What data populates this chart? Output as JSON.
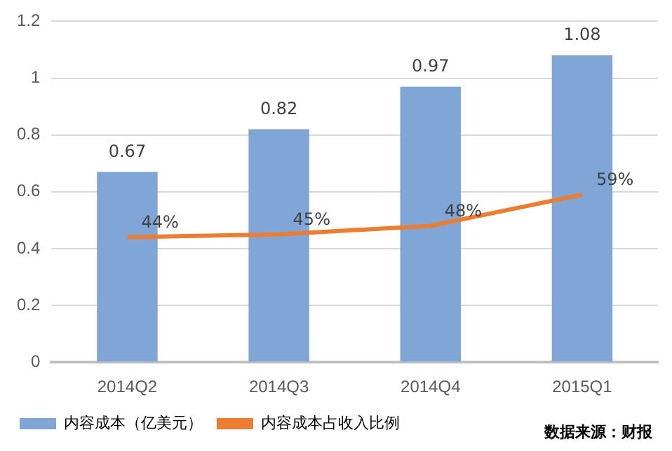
{
  "chart_data": {
    "type": "bar",
    "categories": [
      "2014Q2",
      "2014Q3",
      "2014Q4",
      "2015Q1"
    ],
    "series": [
      {
        "name": "内容成本（亿美元）",
        "color": "#7fa6d6",
        "values": [
          0.67,
          0.82,
          0.97,
          1.08
        ],
        "value_labels": [
          "0.67",
          "0.82",
          "0.97",
          "1.08"
        ]
      },
      {
        "name": "内容成本占收入比例",
        "type": "line",
        "color": "#ed7d31",
        "values": [
          0.44,
          0.45,
          0.48,
          0.59
        ],
        "value_labels": [
          "44%",
          "45%",
          "48%",
          "59%"
        ]
      }
    ],
    "ylim": [
      0,
      1.2
    ],
    "yticks": [
      0,
      0.2,
      0.4,
      0.6,
      0.8,
      1,
      1.2
    ],
    "grid": "y",
    "legend": "bottom",
    "marker": "none",
    "annotations": [
      "数据来源：财报"
    ]
  }
}
